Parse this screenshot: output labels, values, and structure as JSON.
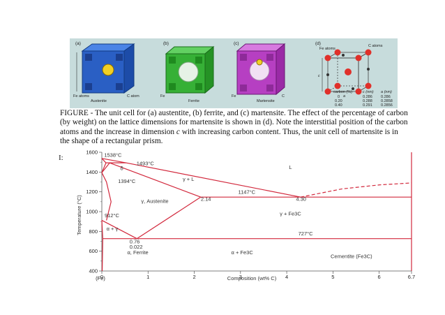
{
  "figure": {
    "panels": [
      {
        "letter": "(a)",
        "name": "Austenite",
        "fe": "Fe atoms",
        "c": "C atom",
        "color": "#2f6fd8"
      },
      {
        "letter": "(b)",
        "name": "Ferrite",
        "fe": "Fe",
        "color": "#3fbd3f"
      },
      {
        "letter": "(c)",
        "name": "Martensite",
        "fe": "Fe",
        "c": "C",
        "color": "#c44ad0"
      },
      {
        "letter": "(d)",
        "fe": "Fe atoms",
        "c": "C atoms",
        "a_label": "a",
        "c_dim": "c"
      }
    ],
    "table": {
      "headers": [
        "carbon (%)",
        "c (nm)",
        "a (nm)"
      ],
      "rows": [
        [
          "0",
          "0.286",
          "0.286"
        ],
        [
          "0.20",
          "0.288",
          "0.2858"
        ],
        [
          "0.40",
          "0.291",
          "0.2856"
        ]
      ]
    },
    "caption_1": "FIGURE - The unit cell for (a) austentite, (b) ferrite, and (c) martensite. The  effect of the percentage of carbon (by weight) on the lattice dimensions for  martensite is shown in (d). Note the interstitial position of the carbon atoms and  the increase in dimension ",
    "caption_c": "c",
    "caption_2": " with increasing carbon content. Thus, the unit cell of martensite is in the shape of a rectangular prism."
  },
  "chart_data": {
    "type": "line",
    "xlabel": "Composition (wt% C)",
    "ylabel": "Temperature (°C)",
    "xlim": [
      0,
      6.7
    ],
    "ylim": [
      400,
      1600
    ],
    "x_ticks": [
      "0",
      "1",
      "2",
      "3",
      "4",
      "5",
      "6",
      "6.7"
    ],
    "x_tick_values": [
      0,
      1,
      2,
      3,
      4,
      5,
      6,
      6.7
    ],
    "y_ticks": [
      "400",
      "600",
      "800",
      "1000",
      "1200",
      "1400",
      "1600"
    ],
    "y_tick_values": [
      400,
      600,
      800,
      1000,
      1200,
      1400,
      1600
    ],
    "x_origin_label": "(Fe)",
    "lines": [
      {
        "points": [
          [
            0,
            1538
          ],
          [
            0.53,
            1493
          ],
          [
            4.3,
            1147
          ]
        ]
      },
      {
        "points": [
          [
            0,
            1538
          ],
          [
            0.09,
            1493
          ]
        ]
      },
      {
        "points": [
          [
            0.09,
            1493
          ],
          [
            0.17,
            1493
          ],
          [
            0.53,
            1493
          ]
        ]
      },
      {
        "points": [
          [
            0.09,
            1493
          ],
          [
            0,
            1394
          ]
        ]
      },
      {
        "points": [
          [
            0.17,
            1493
          ],
          [
            0,
            1394
          ]
        ]
      },
      {
        "points": [
          [
            0.17,
            1493
          ],
          [
            2.14,
            1147
          ]
        ]
      },
      {
        "points": [
          [
            0,
            1394
          ],
          [
            0.1,
            1300
          ],
          [
            0.2,
            1100
          ],
          [
            0.1,
            912
          ]
        ]
      },
      {
        "points": [
          [
            2.14,
            1147
          ],
          [
            6.7,
            1147
          ]
        ]
      },
      {
        "points": [
          [
            2.14,
            1147
          ],
          [
            0.76,
            727
          ]
        ]
      },
      {
        "points": [
          [
            0,
            912
          ],
          [
            0.76,
            727
          ]
        ]
      },
      {
        "points": [
          [
            0,
            912
          ],
          [
            0.02,
            727
          ]
        ]
      },
      {
        "points": [
          [
            0.02,
            727
          ],
          [
            6.7,
            727
          ]
        ]
      },
      {
        "points": [
          [
            0.02,
            727
          ],
          [
            0.008,
            400
          ]
        ]
      },
      {
        "points": [
          [
            6.7,
            400
          ],
          [
            6.7,
            1600
          ]
        ]
      }
    ],
    "dashed": [
      {
        "points": [
          [
            4.3,
            1147
          ],
          [
            5.2,
            1230
          ],
          [
            6.0,
            1270
          ],
          [
            6.7,
            1290
          ]
        ]
      }
    ],
    "annotations": [
      {
        "text": "1538°C",
        "x": 0.05,
        "y": 1555
      },
      {
        "text": "1493°C",
        "x": 0.75,
        "y": 1470
      },
      {
        "text": "δ",
        "x": 0.4,
        "y": 1420
      },
      {
        "text": "1394°C",
        "x": 0.35,
        "y": 1290
      },
      {
        "text": "γ + L",
        "x": 1.75,
        "y": 1310
      },
      {
        "text": "L",
        "x": 4.05,
        "y": 1430
      },
      {
        "text": "1147°C",
        "x": 2.95,
        "y": 1180
      },
      {
        "text": "2.14",
        "x": 2.14,
        "y": 1110
      },
      {
        "text": "4.30",
        "x": 4.2,
        "y": 1110
      },
      {
        "text": "γ, Austenite",
        "x": 0.85,
        "y": 1090
      },
      {
        "text": "γ + Fe3C",
        "x": 3.85,
        "y": 960
      },
      {
        "text": "912°C",
        "x": 0.06,
        "y": 945
      },
      {
        "text": "727°C",
        "x": 4.25,
        "y": 760
      },
      {
        "text": "0.76",
        "x": 0.6,
        "y": 680
      },
      {
        "text": "0.022",
        "x": 0.6,
        "y": 625
      },
      {
        "text": "α, Ferrite",
        "x": 0.55,
        "y": 570
      },
      {
        "text": "α + Fe3C",
        "x": 2.8,
        "y": 570
      },
      {
        "text": "Cementite (Fe3C)",
        "x": 4.95,
        "y": 530
      },
      {
        "text": "α + γ",
        "x": 0.1,
        "y": 810
      }
    ]
  },
  "labels": {
    "I_mark": "I:"
  }
}
